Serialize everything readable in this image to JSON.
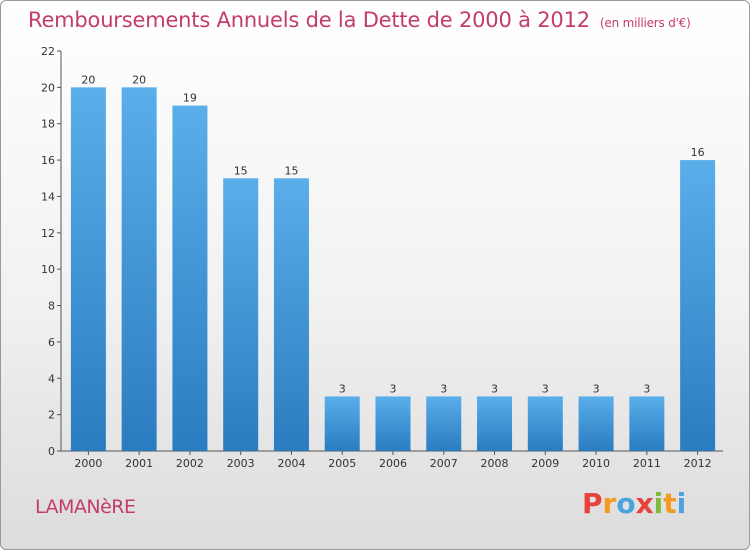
{
  "title": "Remboursements Annuels de la Dette de 2000 à 2012",
  "subtitle": "(en milliers d'€)",
  "place_name": "LAMANèRE",
  "brand": {
    "letters": [
      "P",
      "r",
      "o",
      "x",
      "i",
      "t",
      "i"
    ],
    "colors": [
      "#e8423c",
      "#f29b1d",
      "#4aa3df",
      "#e8423c",
      "#7dbb3c",
      "#f29b1d",
      "#4aa3df"
    ]
  },
  "colors": {
    "title": "#c43c6a",
    "bar_light": "#5aaeea",
    "bar_dark": "#2a7cc0"
  },
  "chart_data": {
    "type": "bar",
    "categories": [
      "2000",
      "2001",
      "2002",
      "2003",
      "2004",
      "2005",
      "2006",
      "2007",
      "2008",
      "2009",
      "2010",
      "2011",
      "2012"
    ],
    "values": [
      20,
      20,
      19,
      15,
      15,
      3,
      3,
      3,
      3,
      3,
      3,
      3,
      16
    ],
    "data_labels": [
      "20",
      "20",
      "19",
      "15",
      "15",
      "3",
      "3",
      "3",
      "3",
      "3",
      "3",
      "3",
      "16"
    ],
    "title": "Remboursements Annuels de la Dette de 2000 à 2012",
    "xlabel": "",
    "ylabel": "",
    "ylim": [
      0,
      22
    ],
    "yticks": [
      0,
      2,
      4,
      6,
      8,
      10,
      12,
      14,
      16,
      18,
      20,
      22
    ],
    "grid": false,
    "legend": "none"
  }
}
